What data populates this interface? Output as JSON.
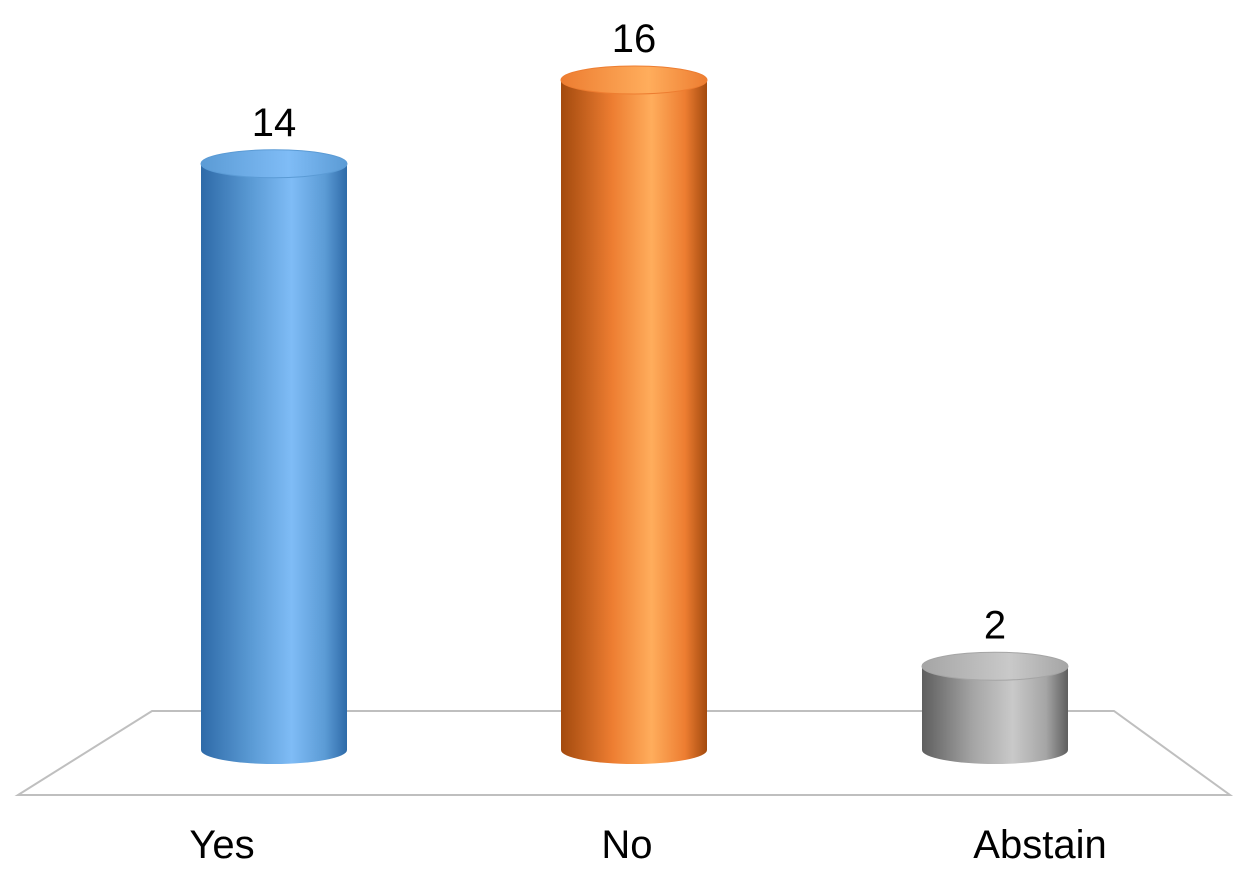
{
  "chart_data": {
    "type": "bar",
    "style": "3d-cylinder",
    "categories": [
      "Yes",
      "No",
      "Abstain"
    ],
    "values": [
      14,
      16,
      2
    ],
    "data_labels": [
      "14",
      "16",
      "2"
    ],
    "ylim": [
      0,
      16
    ],
    "grid": false,
    "legend": "none",
    "colors": {
      "Yes": {
        "light": "#7fbcf6",
        "mid": "#5b9bd5",
        "dark": "#2e6aa8"
      },
      "No": {
        "light": "#ffad5c",
        "mid": "#ed7d31",
        "dark": "#a34a0e"
      },
      "Abstain": {
        "light": "#c9c9c9",
        "mid": "#a5a5a5",
        "dark": "#5e5e5e"
      }
    },
    "floor_color": "#bfbfbf"
  }
}
